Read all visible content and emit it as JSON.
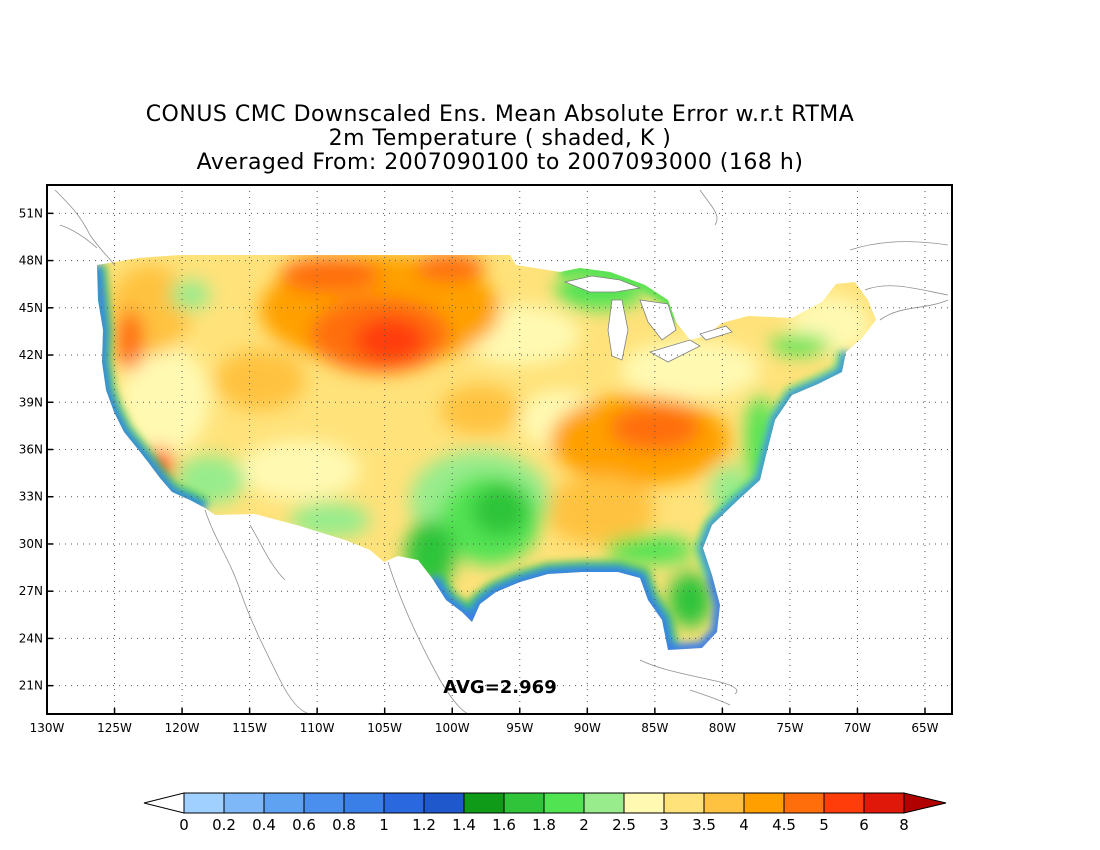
{
  "titles": {
    "line1": "CONUS CMC Downscaled Ens. Mean Absolute Error w.r.t RTMA",
    "line2": "2m Temperature ( shaded, K )",
    "line3": "Averaged From: 2007090100 to 2007093000 (168 h)"
  },
  "avg_label": "AVG=2.969",
  "map": {
    "lon_ticks": [
      "130W",
      "125W",
      "120W",
      "115W",
      "110W",
      "105W",
      "100W",
      "95W",
      "90W",
      "85W",
      "80W",
      "75W",
      "70W",
      "65W"
    ],
    "lat_ticks": [
      "21N",
      "24N",
      "27N",
      "30N",
      "33N",
      "36N",
      "39N",
      "42N",
      "45N",
      "48N",
      "51N"
    ],
    "lon_range": [
      -130,
      -63
    ],
    "lat_range": [
      19.2,
      52.8
    ]
  },
  "colorbar": {
    "labels": [
      "0",
      "0.2",
      "0.4",
      "0.6",
      "0.8",
      "1",
      "1.2",
      "1.4",
      "1.6",
      "1.8",
      "2",
      "2.5",
      "3",
      "3.5",
      "4",
      "4.5",
      "5",
      "6",
      "8"
    ],
    "colors": [
      "#9fd0ff",
      "#7fb8f8",
      "#5fa2f2",
      "#4a8fee",
      "#3a7ee8",
      "#2a68e0",
      "#1f58cc",
      "#0f9a18",
      "#2fc43a",
      "#52e352",
      "#98ec8c",
      "#fff9b2",
      "#ffe27a",
      "#ffc240",
      "#ffa000",
      "#ff6e0a",
      "#ff3d0a",
      "#e0180a"
    ],
    "under_color": "#ffffff",
    "over_color": "#b00000"
  },
  "colors": {
    "frame": "#000000",
    "grid": "#555555",
    "coast": "#808080"
  }
}
